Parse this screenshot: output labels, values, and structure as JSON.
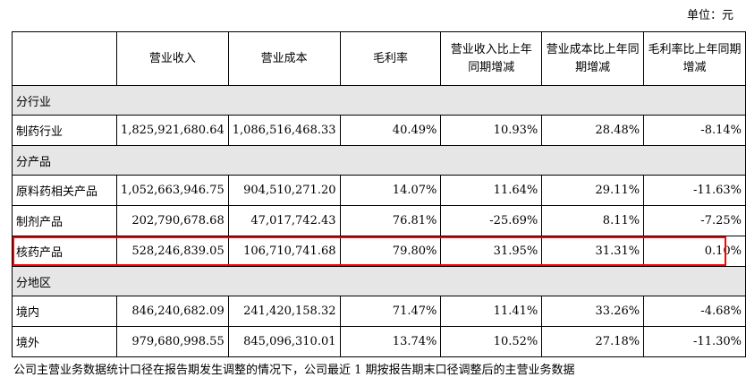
{
  "unit_label": "单位：元",
  "headers": [
    "",
    "营业收入",
    "营业成本",
    "毛利率",
    "营业收入比上年同期增减",
    "营业成本比上年同期增减",
    "毛利率比上年同期增减"
  ],
  "sections": [
    {
      "title": "分行业",
      "rows": [
        {
          "label": "制药行业",
          "revenue": "1,825,921,680.64",
          "cost": "1,086,516,468.33",
          "gross_margin": "40.49%",
          "revenue_change": "10.93%",
          "cost_change": "28.48%",
          "margin_change": "-8.14%"
        }
      ]
    },
    {
      "title": "分产品",
      "rows": [
        {
          "label": "原料药相关产品",
          "revenue": "1,052,663,946.75",
          "cost": "904,510,271.20",
          "gross_margin": "14.07%",
          "revenue_change": "11.64%",
          "cost_change": "29.11%",
          "margin_change": "-11.63%"
        },
        {
          "label": "制剂产品",
          "revenue": "202,790,678.68",
          "cost": "47,017,742.43",
          "gross_margin": "76.81%",
          "revenue_change": "-25.69%",
          "cost_change": "8.11%",
          "margin_change": "-7.25%"
        },
        {
          "label": "核药产品",
          "revenue": "528,246,839.05",
          "cost": "106,710,741.68",
          "gross_margin": "79.80%",
          "revenue_change": "31.95%",
          "cost_change": "31.31%",
          "margin_change": "0.10%"
        }
      ]
    },
    {
      "title": "分地区",
      "rows": [
        {
          "label": "境内",
          "revenue": "846,240,682.09",
          "cost": "241,420,158.32",
          "gross_margin": "71.47%",
          "revenue_change": "11.41%",
          "cost_change": "33.26%",
          "margin_change": "-4.68%"
        },
        {
          "label": "境外",
          "revenue": "979,680,998.55",
          "cost": "845,096,310.01",
          "gross_margin": "13.74%",
          "revenue_change": "10.52%",
          "cost_change": "27.18%",
          "margin_change": "-11.30%"
        }
      ]
    }
  ],
  "highlight_color": "#ff0000",
  "section_bg": "#e6e6e6",
  "footnote": "公司主营业务数据统计口径在报告期发生调整的情况下，公司最近 1 期按报告期末口径调整后的主营业务数据"
}
